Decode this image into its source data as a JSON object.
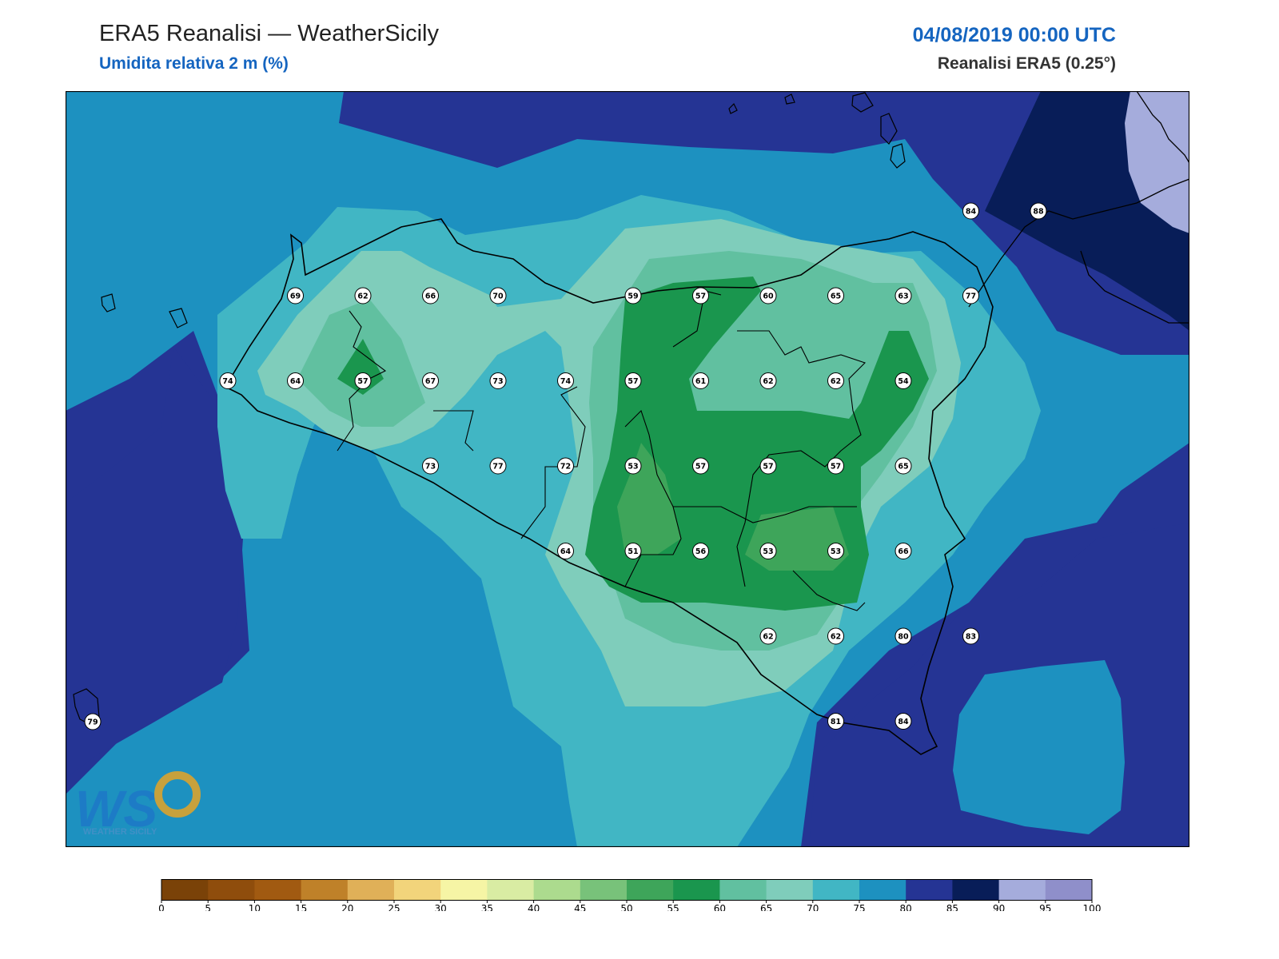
{
  "header": {
    "title": "ERA5 Reanalisi — WeatherSicily",
    "subtitle": "Umidita relativa 2 m (%)",
    "datetime": "04/08/2019 00:00 UTC",
    "source": "Reanalisi ERA5 (0.25°)"
  },
  "logo": {
    "letters": "WS",
    "text": "WEATHER SICILY"
  },
  "colorbar": {
    "ticks": [
      "0",
      "5",
      "10",
      "15",
      "20",
      "25",
      "30",
      "35",
      "40",
      "45",
      "50",
      "55",
      "60",
      "65",
      "70",
      "75",
      "80",
      "85",
      "90",
      "95",
      "100"
    ],
    "colors": [
      "#7a4208",
      "#8f4d0c",
      "#a15a11",
      "#bf8129",
      "#e0b058",
      "#f2d47b",
      "#f6f5a5",
      "#d9eca3",
      "#acdb8e",
      "#78c27a",
      "#3ea55a",
      "#1a964e",
      "#61c0a0",
      "#7fcdbb",
      "#41b6c4",
      "#1d91c0",
      "#253494",
      "#081d58",
      "#a5acdc",
      "#8f8fca"
    ]
  },
  "stations": [
    {
      "v": "69",
      "c": 3,
      "r": 0
    },
    {
      "v": "62",
      "c": 4,
      "r": 0
    },
    {
      "v": "66",
      "c": 5,
      "r": 0
    },
    {
      "v": "70",
      "c": 6,
      "r": 0
    },
    {
      "v": "59",
      "c": 8,
      "r": 0
    },
    {
      "v": "57",
      "c": 9,
      "r": 0
    },
    {
      "v": "60",
      "c": 10,
      "r": 0
    },
    {
      "v": "65",
      "c": 11,
      "r": 0
    },
    {
      "v": "63",
      "c": 12,
      "r": 0
    },
    {
      "v": "77",
      "c": 13,
      "r": 0
    },
    {
      "v": "74",
      "c": 2,
      "r": 1
    },
    {
      "v": "64",
      "c": 3,
      "r": 1
    },
    {
      "v": "57",
      "c": 4,
      "r": 1
    },
    {
      "v": "67",
      "c": 5,
      "r": 1
    },
    {
      "v": "73",
      "c": 6,
      "r": 1
    },
    {
      "v": "74",
      "c": 7,
      "r": 1
    },
    {
      "v": "57",
      "c": 8,
      "r": 1
    },
    {
      "v": "61",
      "c": 9,
      "r": 1
    },
    {
      "v": "62",
      "c": 10,
      "r": 1
    },
    {
      "v": "62",
      "c": 11,
      "r": 1
    },
    {
      "v": "54",
      "c": 12,
      "r": 1
    },
    {
      "v": "73",
      "c": 5,
      "r": 2
    },
    {
      "v": "77",
      "c": 6,
      "r": 2
    },
    {
      "v": "72",
      "c": 7,
      "r": 2
    },
    {
      "v": "53",
      "c": 8,
      "r": 2
    },
    {
      "v": "57",
      "c": 9,
      "r": 2
    },
    {
      "v": "57",
      "c": 10,
      "r": 2
    },
    {
      "v": "57",
      "c": 11,
      "r": 2
    },
    {
      "v": "65",
      "c": 12,
      "r": 2
    },
    {
      "v": "64",
      "c": 7,
      "r": 3
    },
    {
      "v": "51",
      "c": 8,
      "r": 3
    },
    {
      "v": "56",
      "c": 9,
      "r": 3
    },
    {
      "v": "53",
      "c": 10,
      "r": 3
    },
    {
      "v": "53",
      "c": 11,
      "r": 3
    },
    {
      "v": "66",
      "c": 12,
      "r": 3
    },
    {
      "v": "62",
      "c": 10,
      "r": 4
    },
    {
      "v": "62",
      "c": 11,
      "r": 4
    },
    {
      "v": "80",
      "c": 12,
      "r": 4
    },
    {
      "v": "83",
      "c": 13,
      "r": 4
    },
    {
      "v": "81",
      "c": 11,
      "r": 5
    },
    {
      "v": "84",
      "c": 12,
      "r": 5
    },
    {
      "v": "79",
      "c": 0,
      "r": 5
    },
    {
      "v": "84",
      "c": 13,
      "r": -1
    },
    {
      "v": "88",
      "c": 14,
      "r": -1
    }
  ]
}
